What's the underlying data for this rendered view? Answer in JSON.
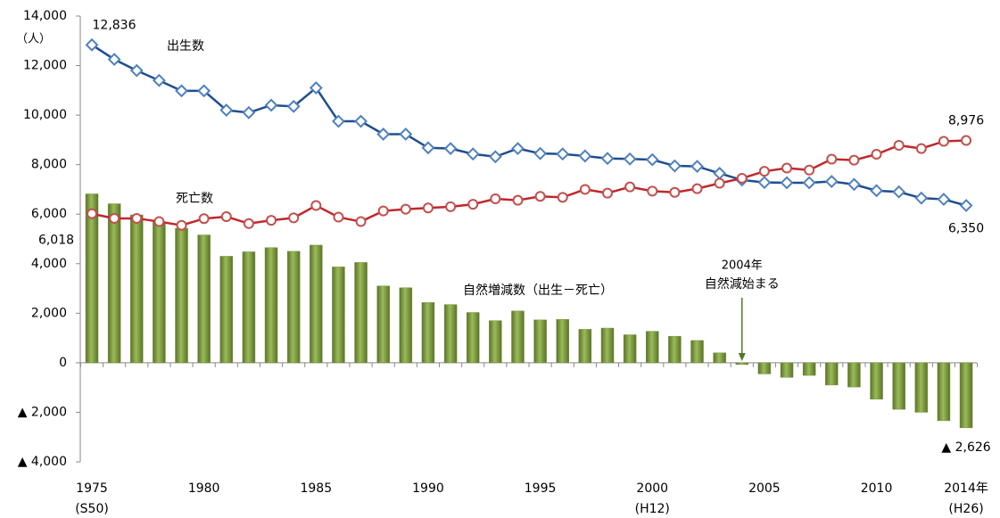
{
  "chart_data": {
    "type": "line_bar",
    "categories": [
      "1975",
      null,
      null,
      null,
      null,
      "1980",
      null,
      null,
      null,
      null,
      "1985",
      null,
      null,
      null,
      null,
      "1990",
      null,
      null,
      null,
      null,
      "1995",
      null,
      null,
      null,
      null,
      "2000",
      null,
      null,
      null,
      null,
      "2005",
      null,
      null,
      null,
      null,
      "2010",
      null,
      null,
      null,
      "2014年"
    ],
    "category_sublabels": [
      "(S50)",
      null,
      null,
      null,
      null,
      null,
      null,
      null,
      null,
      null,
      null,
      null,
      null,
      null,
      null,
      null,
      null,
      null,
      null,
      null,
      null,
      null,
      null,
      null,
      null,
      "(H12)",
      null,
      null,
      null,
      null,
      null,
      null,
      null,
      null,
      null,
      null,
      null,
      null,
      null,
      "(H26)"
    ],
    "ylim": [
      -4000,
      14000
    ],
    "yticks": [
      {
        "value": -4000,
        "label": "▲ 4,000"
      },
      {
        "value": -2000,
        "label": "▲ 2,000"
      },
      0,
      {
        "value": 2000,
        "label": "2,000"
      },
      {
        "value": 4000,
        "label": "4,000"
      },
      {
        "value": 6000,
        "label": "6,000"
      },
      {
        "value": 8000,
        "label": "8,000"
      },
      {
        "value": 10000,
        "label": "10,000"
      },
      {
        "value": 12000,
        "label": "12,000"
      },
      {
        "value": 14000,
        "label": "14,000"
      }
    ],
    "y_unit": "（人）",
    "series": [
      {
        "name": "自然増減数（出生－死亡）",
        "kind": "bar",
        "color": "#77933c",
        "values": [
          6818,
          6420,
          5970,
          5700,
          5430,
          5160,
          4300,
          4480,
          4650,
          4500,
          4750,
          3870,
          4050,
          3100,
          3030,
          2430,
          2350,
          2030,
          1700,
          2090,
          1730,
          1750,
          1350,
          1400,
          1130,
          1270,
          1070,
          900,
          400,
          -70,
          -450,
          -590,
          -510,
          -900,
          -980,
          -1470,
          -1880,
          -2000,
          -2340,
          -2626
        ],
        "value_labels": [
          null,
          null,
          null,
          null,
          null,
          null,
          null,
          null,
          null,
          null,
          null,
          null,
          null,
          null,
          null,
          null,
          null,
          null,
          null,
          null,
          null,
          null,
          null,
          null,
          null,
          null,
          null,
          null,
          null,
          null,
          null,
          null,
          null,
          null,
          null,
          null,
          null,
          null,
          null,
          "▲ 2,626"
        ]
      },
      {
        "name": "出生数",
        "kind": "line",
        "color": "#1f4e8c",
        "marker_color": "#4f81bd",
        "marker": "diamond",
        "values": [
          12836,
          12250,
          11800,
          11400,
          10980,
          10980,
          10200,
          10100,
          10400,
          10350,
          11100,
          9750,
          9750,
          9230,
          9230,
          8680,
          8650,
          8430,
          8320,
          8650,
          8450,
          8430,
          8350,
          8250,
          8230,
          8200,
          7950,
          7930,
          7650,
          7380,
          7280,
          7270,
          7270,
          7320,
          7200,
          6950,
          6900,
          6650,
          6600,
          6350
        ],
        "value_labels": [
          "12,836",
          null,
          null,
          null,
          null,
          null,
          null,
          null,
          null,
          null,
          null,
          null,
          null,
          null,
          null,
          null,
          null,
          null,
          null,
          null,
          null,
          null,
          null,
          null,
          null,
          null,
          null,
          null,
          null,
          null,
          null,
          null,
          null,
          null,
          null,
          null,
          null,
          null,
          null,
          "6,350"
        ]
      },
      {
        "name": "死亡数",
        "kind": "line",
        "color": "#c0282d",
        "marker_color": "#c0504d",
        "marker": "circle",
        "values": [
          6018,
          5830,
          5830,
          5700,
          5550,
          5820,
          5900,
          5620,
          5750,
          5850,
          6350,
          5880,
          5700,
          6130,
          6200,
          6250,
          6300,
          6400,
          6620,
          6560,
          6720,
          6680,
          7000,
          6850,
          7100,
          6930,
          6880,
          7030,
          7250,
          7450,
          7730,
          7860,
          7780,
          8220,
          8180,
          8420,
          8780,
          8650,
          8940,
          8976
        ],
        "value_labels": [
          "6,018",
          null,
          null,
          null,
          null,
          null,
          null,
          null,
          null,
          null,
          null,
          null,
          null,
          null,
          null,
          null,
          null,
          null,
          null,
          null,
          null,
          null,
          null,
          null,
          null,
          null,
          null,
          null,
          null,
          null,
          null,
          null,
          null,
          null,
          null,
          null,
          null,
          null,
          null,
          "8,976"
        ]
      }
    ],
    "annotations": [
      "2004年",
      "自然減始まる"
    ]
  }
}
